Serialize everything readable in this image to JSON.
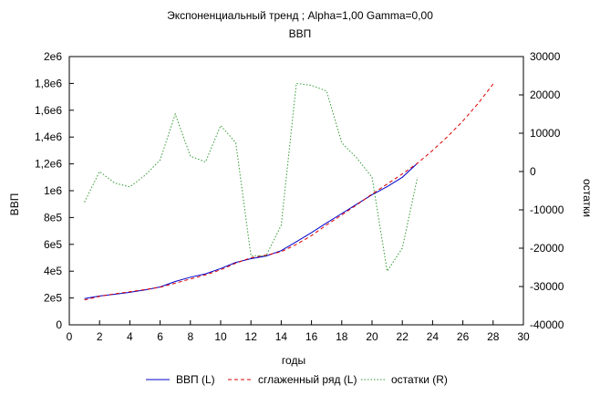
{
  "chart_data": {
    "type": "line",
    "title": "Экспоненциальный тренд ; Alpha=1,00 Gamma=0,00",
    "subtitle": "ВВП",
    "xlabel": "годы",
    "ylabel_left": "ВВП",
    "ylabel_right": "остатки",
    "xlim": [
      0,
      30
    ],
    "ylim_left": [
      0,
      2000000
    ],
    "ylim_right": [
      -40000,
      30000
    ],
    "x_ticks": [
      "0",
      "2",
      "4",
      "6",
      "8",
      "10",
      "12",
      "14",
      "16",
      "18",
      "20",
      "22",
      "24",
      "26",
      "28",
      "30"
    ],
    "y_left_ticks": [
      "0",
      "2e5",
      "4e5",
      "6e5",
      "8e5",
      "1e6",
      "1,2e6",
      "1,4e6",
      "1,6e6",
      "1,8e6",
      "2e6"
    ],
    "y_right_ticks": [
      "-40000",
      "-30000",
      "-20000",
      "-10000",
      "0",
      "10000",
      "20000",
      "30000"
    ],
    "grid": false,
    "legend_position": "bottom",
    "series": [
      {
        "name": "ВВП (L)",
        "axis": "left",
        "color": "#0000cc",
        "style": "solid",
        "x": [
          1,
          2,
          3,
          4,
          5,
          6,
          7,
          8,
          9,
          10,
          11,
          12,
          13,
          14,
          15,
          16,
          17,
          18,
          19,
          20,
          21,
          22,
          23
        ],
        "y": [
          196000,
          215000,
          228000,
          242000,
          260000,
          282000,
          323000,
          355000,
          380000,
          420000,
          465000,
          493000,
          513000,
          553000,
          620000,
          688000,
          760000,
          830000,
          900000,
          970000,
          1030000,
          1100000,
          1205000
        ]
      },
      {
        "name": "сглаженный ряд (L)",
        "axis": "left",
        "color": "#dd0000",
        "style": "dashed",
        "x": [
          1,
          2,
          3,
          4,
          5,
          6,
          7,
          8,
          9,
          10,
          11,
          12,
          13,
          14,
          15,
          16,
          17,
          18,
          19,
          20,
          21,
          22,
          23,
          24,
          25,
          26,
          27,
          28
        ],
        "y": [
          185000,
          212000,
          231000,
          246000,
          263000,
          280000,
          310000,
          342000,
          372000,
          410000,
          460000,
          500000,
          520000,
          545000,
          600000,
          665000,
          745000,
          820000,
          895000,
          975000,
          1050000,
          1125000,
          1205000,
          1300000,
          1405000,
          1520000,
          1650000,
          1795000
        ]
      },
      {
        "name": "остатки (R)",
        "axis": "right",
        "color": "#339933",
        "style": "dotted",
        "x": [
          1,
          2,
          3,
          4,
          5,
          6,
          7,
          8,
          9,
          10,
          11,
          12,
          13,
          14,
          15,
          16,
          17,
          18,
          19,
          20,
          21,
          22,
          23
        ],
        "y": [
          -8000,
          0,
          -3000,
          -4000,
          -1000,
          3000,
          15000,
          4000,
          2500,
          12000,
          7500,
          -22000,
          -22000,
          -14000,
          23000,
          22500,
          21000,
          7500,
          3500,
          -1500,
          -26000,
          -20000,
          -1500
        ]
      }
    ]
  }
}
